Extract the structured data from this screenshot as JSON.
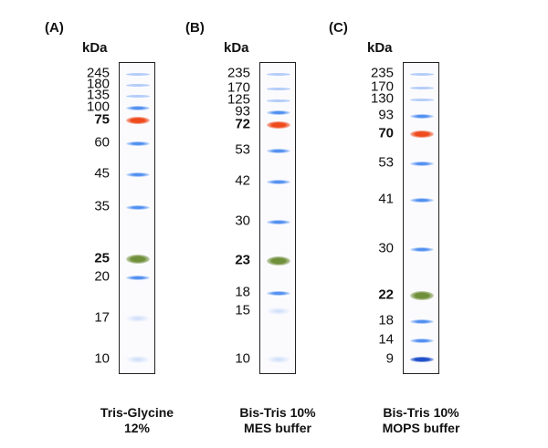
{
  "unit": "kDa",
  "panels": [
    {
      "label": "(A)",
      "caption_line1": "Tris-Glycine",
      "caption_line2": "12%",
      "markers": [
        {
          "mw": "245",
          "kind": "faint"
        },
        {
          "mw": "180",
          "kind": "faint"
        },
        {
          "mw": "135",
          "kind": "faint"
        },
        {
          "mw": "100",
          "kind": "blue"
        },
        {
          "mw": "75",
          "kind": "orange"
        },
        {
          "mw": "60",
          "kind": "blue"
        },
        {
          "mw": "45",
          "kind": "blue"
        },
        {
          "mw": "35",
          "kind": "blue"
        },
        {
          "mw": "25",
          "kind": "green"
        },
        {
          "mw": "20",
          "kind": "blue"
        },
        {
          "mw": "17",
          "kind": "pale"
        },
        {
          "mw": "10",
          "kind": "pale"
        }
      ]
    },
    {
      "label": "(B)",
      "caption_line1": "Bis-Tris 10%",
      "caption_line2": "MES buffer",
      "markers": [
        {
          "mw": "235",
          "kind": "faint"
        },
        {
          "mw": "170",
          "kind": "faint"
        },
        {
          "mw": "125",
          "kind": "faint"
        },
        {
          "mw": "93",
          "kind": "blue"
        },
        {
          "mw": "72",
          "kind": "orange"
        },
        {
          "mw": "53",
          "kind": "blue"
        },
        {
          "mw": "42",
          "kind": "blue"
        },
        {
          "mw": "30",
          "kind": "blue"
        },
        {
          "mw": "23",
          "kind": "green"
        },
        {
          "mw": "18",
          "kind": "blue"
        },
        {
          "mw": "15",
          "kind": "pale"
        },
        {
          "mw": "10",
          "kind": "pale"
        }
      ]
    },
    {
      "label": "(C)",
      "caption_line1": "Bis-Tris 10%",
      "caption_line2": "MOPS buffer",
      "markers": [
        {
          "mw": "235",
          "kind": "faint"
        },
        {
          "mw": "170",
          "kind": "faint"
        },
        {
          "mw": "130",
          "kind": "faint"
        },
        {
          "mw": "93",
          "kind": "blue"
        },
        {
          "mw": "70",
          "kind": "orange"
        },
        {
          "mw": "53",
          "kind": "blue"
        },
        {
          "mw": "41",
          "kind": "blue"
        },
        {
          "mw": "30",
          "kind": "blue"
        },
        {
          "mw": "22",
          "kind": "green"
        },
        {
          "mw": "18",
          "kind": "blue"
        },
        {
          "mw": "14",
          "kind": "blue"
        },
        {
          "mw": "9",
          "kind": "dark"
        }
      ]
    }
  ],
  "colors": {
    "blue": "#4f8ef0",
    "faint": "#9dbef5",
    "pale": "#a9c6f4",
    "orange": "#ee4a1c",
    "green": "#6f8f3a",
    "dark": "#1f4fc8"
  }
}
